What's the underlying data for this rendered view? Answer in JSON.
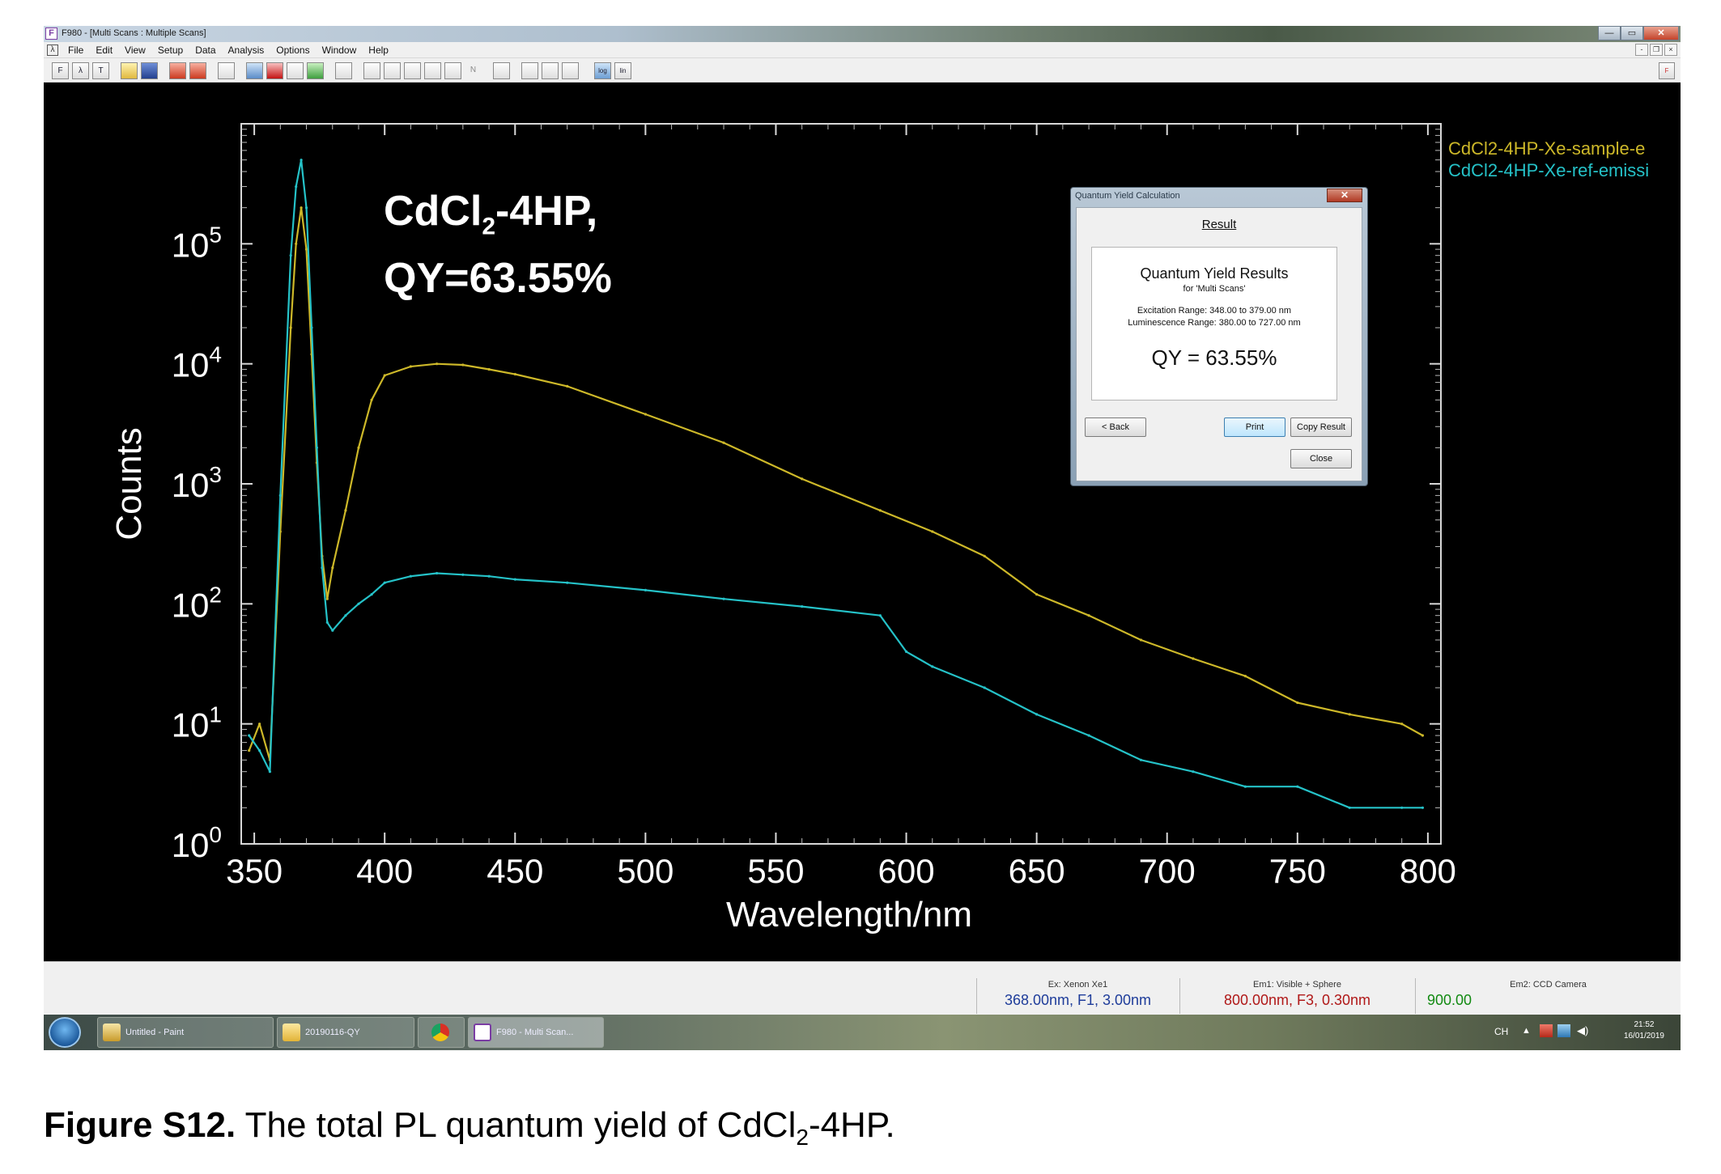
{
  "window": {
    "app_icon": "F",
    "title": "F980 - [Multi Scans : Multiple Scans]",
    "controls": {
      "minimize": "—",
      "maximize": "▭",
      "close": "✕"
    }
  },
  "menubar": {
    "icon": "λ",
    "items": [
      "File",
      "Edit",
      "View",
      "Setup",
      "Data",
      "Analysis",
      "Options",
      "Window",
      "Help"
    ],
    "mdi_controls": [
      "-",
      "❐",
      "×"
    ]
  },
  "toolbar": {
    "buttons": [
      "F",
      "λ",
      "T",
      "open",
      "save",
      "export",
      "import",
      "print",
      "copy",
      "stop",
      "doc",
      "grid",
      "capture",
      "zoom-in",
      "zoom-out",
      "peak",
      "table",
      "plot",
      "N",
      "multi",
      "fit",
      "overlay",
      "cursor",
      "log",
      "lin"
    ],
    "right_icon": "F"
  },
  "chart_data": {
    "type": "line",
    "title": "",
    "xlabel": "Wavelength/nm",
    "ylabel": "Counts",
    "xlim": [
      345,
      805
    ],
    "ylim": [
      1,
      1000000
    ],
    "yscale": "log",
    "xticks": [
      "350",
      "400",
      "450",
      "500",
      "550",
      "600",
      "650",
      "700",
      "750",
      "800"
    ],
    "yticks": [
      {
        "base": "10",
        "exp": "0"
      },
      {
        "base": "10",
        "exp": "1"
      },
      {
        "base": "10",
        "exp": "2"
      },
      {
        "base": "10",
        "exp": "3"
      },
      {
        "base": "10",
        "exp": "4"
      },
      {
        "base": "10",
        "exp": "5"
      }
    ],
    "legend_placement": "top-right, outside",
    "series": [
      {
        "name": "CdCl2-4HP-Xe-sample-e",
        "color": "#cdb829",
        "x": [
          348,
          352,
          356,
          360,
          364,
          366,
          368,
          370,
          372,
          374,
          376,
          378,
          380,
          385,
          390,
          395,
          400,
          410,
          420,
          430,
          440,
          450,
          470,
          500,
          530,
          560,
          590,
          610,
          630,
          650,
          670,
          690,
          710,
          730,
          750,
          770,
          790,
          798
        ],
        "y": [
          6,
          10,
          5,
          400,
          20000,
          100000,
          200000,
          90000,
          12000,
          1500,
          250,
          110,
          200,
          600,
          2000,
          5000,
          8000,
          9500,
          10000,
          9800,
          9000,
          8200,
          6500,
          3800,
          2200,
          1100,
          600,
          400,
          250,
          120,
          80,
          50,
          35,
          25,
          15,
          12,
          10,
          8
        ]
      },
      {
        "name": "CdCl2-4HP-Xe-ref-emissi",
        "color": "#25c2c8",
        "x": [
          348,
          352,
          356,
          360,
          364,
          366,
          368,
          370,
          372,
          374,
          376,
          378,
          380,
          385,
          390,
          395,
          400,
          410,
          420,
          430,
          440,
          450,
          470,
          500,
          530,
          560,
          590,
          600,
          610,
          630,
          650,
          670,
          690,
          710,
          730,
          750,
          770,
          790,
          798
        ],
        "y": [
          8,
          6,
          4,
          800,
          80000,
          300000,
          500000,
          200000,
          20000,
          2000,
          200,
          70,
          60,
          80,
          100,
          120,
          150,
          170,
          180,
          175,
          170,
          160,
          150,
          130,
          110,
          95,
          80,
          40,
          30,
          20,
          12,
          8,
          5,
          4,
          3,
          3,
          2,
          2,
          2
        ]
      }
    ]
  },
  "annotation": {
    "line1_pre": "CdCl",
    "line1_sub": "2",
    "line1_post": "-4HP,",
    "line2": "QY=63.55%"
  },
  "dialog": {
    "title": "Quantum Yield Calculation",
    "close": "✕",
    "heading": "Result",
    "panel_title": "Quantum Yield Results",
    "panel_sub": "for 'Multi Scans'",
    "excitation": "Excitation Range: 348.00 to 379.00 nm",
    "luminescence": "Luminescence Range: 380.00 to 727.00 nm",
    "qy": "QY = 63.55%",
    "btn_back": "< Back",
    "btn_print": "Print",
    "btn_copy": "Copy Result",
    "btn_close": "Close"
  },
  "statusbar": {
    "ex_header": "Ex: Xenon Xe1",
    "ex_value": "368.00nm, F1, 3.00nm",
    "em1_header": "Em1: Visible + Sphere",
    "em1_value": "800.00nm, F3, 0.30nm",
    "em2_header": "Em2: CCD Camera",
    "em2_value": "900.00",
    "colors": {
      "ex": "#1e3c9a",
      "em1": "#b01818",
      "em2": "#128a12"
    }
  },
  "taskbar": {
    "items": [
      "Untitled - Paint",
      "20190116-QY",
      "",
      "F980 - Multi Scan..."
    ],
    "lang": "CH",
    "time": "21:52",
    "date": "16/01/2019"
  },
  "caption": {
    "label": "Figure S12.",
    "text_pre": " The total PL quantum yield of CdCl",
    "sub": "2",
    "text_post": "-4HP."
  }
}
